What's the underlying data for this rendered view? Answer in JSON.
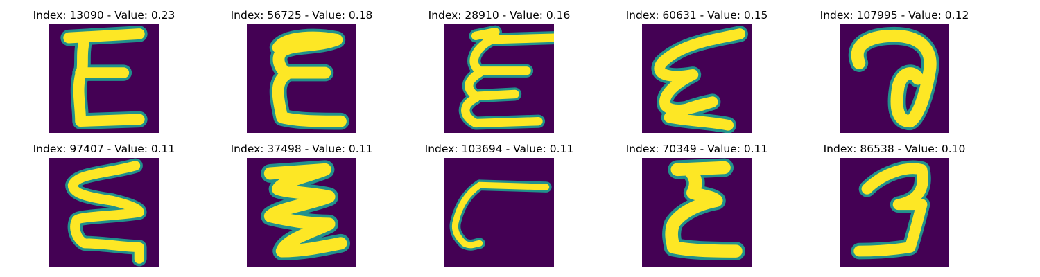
{
  "figure": {
    "palette": {
      "background": "#440154",
      "mid": "#21918c",
      "stroke": "#fde725",
      "edge": "#5ec962"
    },
    "panels": [
      {
        "title": "Index: 13090 - Value: 0.23",
        "glyph": "digit-E-like"
      },
      {
        "title": "Index: 56725 - Value: 0.18",
        "glyph": "digit-E-like"
      },
      {
        "title": "Index: 28910 - Value: 0.16",
        "glyph": "digit-E-like"
      },
      {
        "title": "Index: 60631 - Value: 0.15",
        "glyph": "digit-E-like"
      },
      {
        "title": "Index: 107995 - Value: 0.12",
        "glyph": "loop-a-like"
      },
      {
        "title": "Index: 97407 - Value: 0.11",
        "glyph": "digit-E-like"
      },
      {
        "title": "Index: 37498 - Value: 0.11",
        "glyph": "zigzag-E-like"
      },
      {
        "title": "Index: 103694 - Value: 0.11",
        "glyph": "c-with-bar"
      },
      {
        "title": "Index: 70349 - Value: 0.11",
        "glyph": "digit-E-like"
      },
      {
        "title": "Index: 86538 - Value: 0.10",
        "glyph": "digit-3-like"
      }
    ]
  }
}
